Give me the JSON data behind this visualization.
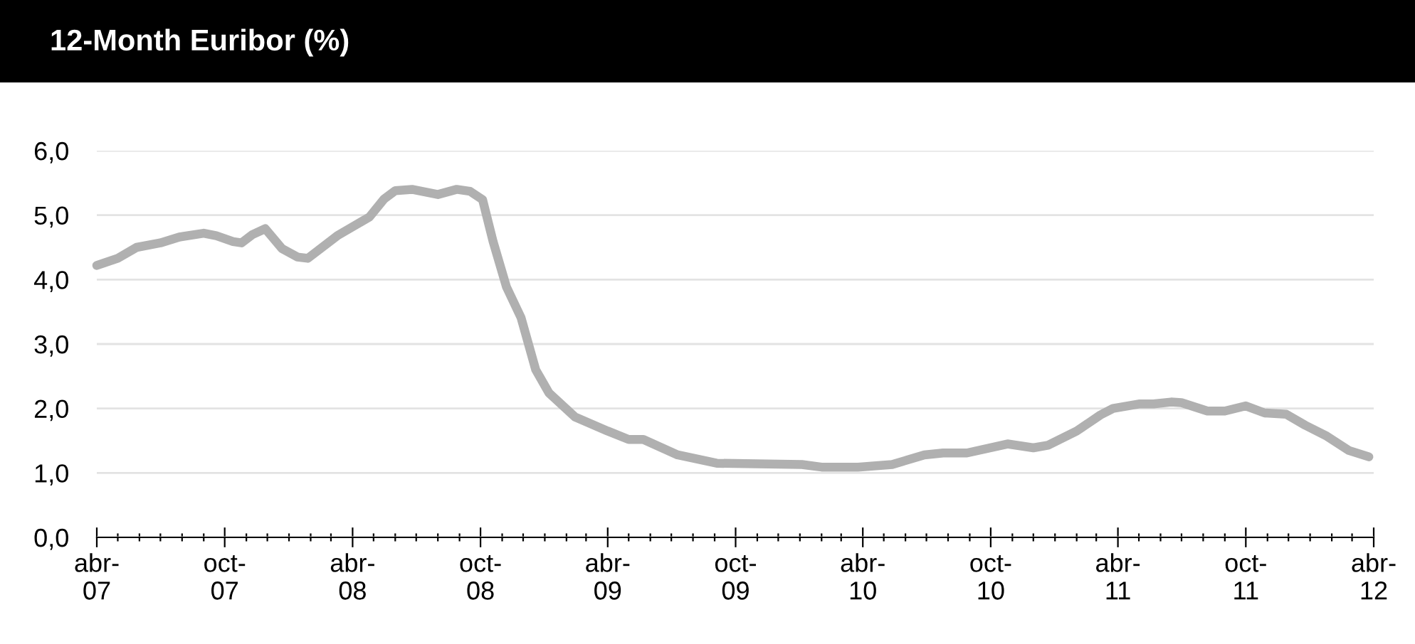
{
  "chart_data": {
    "type": "line",
    "title": "12-Month Euribor (%)",
    "x": [
      "2007-04-01",
      "2007-05-01",
      "2007-05-28",
      "2007-07-01",
      "2007-07-28",
      "2007-09-01",
      "2007-09-19",
      "2007-10-13",
      "2007-10-25",
      "2007-11-10",
      "2007-11-28",
      "2007-12-22",
      "2008-01-13",
      "2008-01-28",
      "2008-03-10",
      "2008-04-25",
      "2008-05-16",
      "2008-06-01",
      "2008-06-25",
      "2008-08-01",
      "2008-08-28",
      "2008-09-16",
      "2008-10-04",
      "2008-10-19",
      "2008-11-07",
      "2008-11-28",
      "2008-12-19",
      "2009-01-07",
      "2009-02-13",
      "2009-04-01",
      "2009-05-01",
      "2009-05-22",
      "2009-07-10",
      "2009-09-04",
      "2010-01-04",
      "2010-02-01",
      "2010-03-25",
      "2010-05-13",
      "2010-06-28",
      "2010-07-25",
      "2010-08-28",
      "2010-10-25",
      "2010-12-01",
      "2010-12-22",
      "2011-02-01",
      "2011-03-07",
      "2011-03-25",
      "2011-05-01",
      "2011-05-22",
      "2011-06-16",
      "2011-07-01",
      "2011-08-07",
      "2011-09-01",
      "2011-10-01",
      "2011-10-28",
      "2011-11-28",
      "2011-12-25",
      "2012-01-25",
      "2012-02-25",
      "2012-03-25"
    ],
    "series": [
      {
        "color": "#b0b0b0",
        "values": [
          4.22,
          4.33,
          4.5,
          4.57,
          4.66,
          4.72,
          4.68,
          4.59,
          4.57,
          4.7,
          4.79,
          4.48,
          4.35,
          4.33,
          4.68,
          4.97,
          5.25,
          5.38,
          5.4,
          5.32,
          5.4,
          5.37,
          5.24,
          4.59,
          3.89,
          3.41,
          2.6,
          2.24,
          1.87,
          1.65,
          1.52,
          1.52,
          1.28,
          1.15,
          1.13,
          1.09,
          1.09,
          1.13,
          1.28,
          1.31,
          1.31,
          1.45,
          1.39,
          1.43,
          1.65,
          1.9,
          2.0,
          2.07,
          2.07,
          2.1,
          2.09,
          1.96,
          1.96,
          2.04,
          1.93,
          1.91,
          1.74,
          1.57,
          1.35,
          1.25
        ]
      }
    ],
    "xlim": [
      "2007-04",
      "2012-04"
    ],
    "xticks": [
      {
        "value": "2007-04",
        "label": "abr-\n07"
      },
      {
        "value": "2007-05",
        "label": null
      },
      {
        "value": "2007-06",
        "label": null
      },
      {
        "value": "2007-07",
        "label": null
      },
      {
        "value": "2007-08",
        "label": null
      },
      {
        "value": "2007-09",
        "label": null
      },
      {
        "value": "2007-10",
        "label": "oct-\n07"
      },
      {
        "value": "2007-11",
        "label": null
      },
      {
        "value": "2007-12",
        "label": null
      },
      {
        "value": "2008-01",
        "label": null
      },
      {
        "value": "2008-02",
        "label": null
      },
      {
        "value": "2008-03",
        "label": null
      },
      {
        "value": "2008-04",
        "label": "abr-\n08"
      },
      {
        "value": "2008-05",
        "label": null
      },
      {
        "value": "2008-06",
        "label": null
      },
      {
        "value": "2008-07",
        "label": null
      },
      {
        "value": "2008-08",
        "label": null
      },
      {
        "value": "2008-09",
        "label": null
      },
      {
        "value": "2008-10",
        "label": "oct-\n08"
      },
      {
        "value": "2008-11",
        "label": null
      },
      {
        "value": "2008-12",
        "label": null
      },
      {
        "value": "2009-01",
        "label": null
      },
      {
        "value": "2009-02",
        "label": null
      },
      {
        "value": "2009-03",
        "label": null
      },
      {
        "value": "2009-04",
        "label": "abr-\n09"
      },
      {
        "value": "2009-05",
        "label": null
      },
      {
        "value": "2009-06",
        "label": null
      },
      {
        "value": "2009-07",
        "label": null
      },
      {
        "value": "2009-08",
        "label": null
      },
      {
        "value": "2009-09",
        "label": null
      },
      {
        "value": "2009-10",
        "label": "oct-\n09"
      },
      {
        "value": "2009-11",
        "label": null
      },
      {
        "value": "2009-12",
        "label": null
      },
      {
        "value": "2010-01",
        "label": null
      },
      {
        "value": "2010-02",
        "label": null
      },
      {
        "value": "2010-03",
        "label": null
      },
      {
        "value": "2010-04",
        "label": "abr-\n10"
      },
      {
        "value": "2010-05",
        "label": null
      },
      {
        "value": "2010-06",
        "label": null
      },
      {
        "value": "2010-07",
        "label": null
      },
      {
        "value": "2010-08",
        "label": null
      },
      {
        "value": "2010-09",
        "label": null
      },
      {
        "value": "2010-10",
        "label": "oct-\n10"
      },
      {
        "value": "2010-11",
        "label": null
      },
      {
        "value": "2010-12",
        "label": null
      },
      {
        "value": "2011-01",
        "label": null
      },
      {
        "value": "2011-02",
        "label": null
      },
      {
        "value": "2011-03",
        "label": null
      },
      {
        "value": "2011-04",
        "label": "abr-\n11"
      },
      {
        "value": "2011-05",
        "label": null
      },
      {
        "value": "2011-06",
        "label": null
      },
      {
        "value": "2011-07",
        "label": null
      },
      {
        "value": "2011-08",
        "label": null
      },
      {
        "value": "2011-09",
        "label": null
      },
      {
        "value": "2011-10",
        "label": "oct-\n11"
      },
      {
        "value": "2011-11",
        "label": null
      },
      {
        "value": "2011-12",
        "label": null
      },
      {
        "value": "2012-01",
        "label": null
      },
      {
        "value": "2012-02",
        "label": null
      },
      {
        "value": "2012-03",
        "label": null
      },
      {
        "value": "2012-04",
        "label": "abr-\n12"
      }
    ],
    "ylim": [
      0,
      6
    ],
    "yticks": [
      {
        "value": 0,
        "label": "0,0"
      },
      {
        "value": 1,
        "label": "1,0"
      },
      {
        "value": 2,
        "label": "2,0"
      },
      {
        "value": 3,
        "label": "3,0"
      },
      {
        "value": 4,
        "label": "4,0"
      },
      {
        "value": 5,
        "label": "5,0"
      },
      {
        "value": 6,
        "label": "6,0"
      }
    ],
    "grid": "y",
    "marker": "none",
    "line_style": "solid"
  }
}
